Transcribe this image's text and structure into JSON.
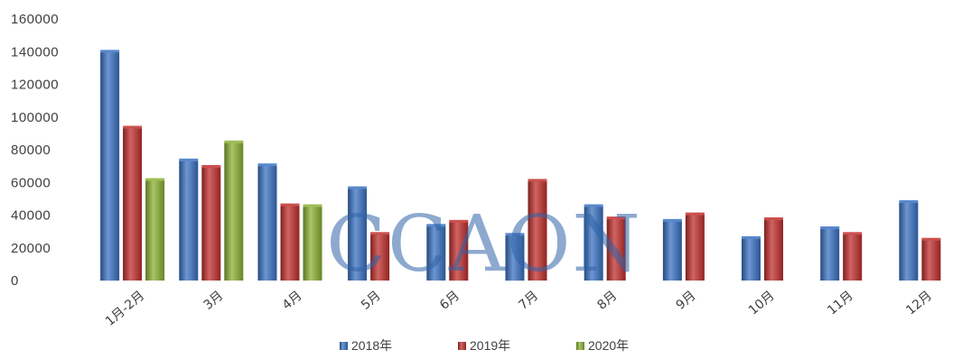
{
  "chart_data": {
    "type": "bar",
    "categories": [
      "1月-2月",
      "3月",
      "4月",
      "5月",
      "6月",
      "7月",
      "8月",
      "9月",
      "10月",
      "11月",
      "12月"
    ],
    "series": [
      {
        "name": "2018年",
        "color": "#3b73c4",
        "values": [
          140000,
          73500,
          70500,
          56500,
          33500,
          28000,
          45500,
          36500,
          26000,
          32000,
          48000
        ]
      },
      {
        "name": "2019年",
        "color": "#c2302d",
        "values": [
          93500,
          69500,
          46000,
          28500,
          36000,
          61000,
          38000,
          40500,
          37500,
          28500,
          25000
        ]
      },
      {
        "name": "2020年",
        "color": "#8cb334",
        "values": [
          61500,
          84500,
          45500,
          null,
          null,
          null,
          null,
          null,
          null,
          null,
          null
        ]
      }
    ],
    "ylim": [
      0,
      160000
    ],
    "yticks": [
      0,
      20000,
      40000,
      60000,
      80000,
      100000,
      120000,
      140000,
      160000
    ],
    "grid": false,
    "legend_position": "bottom",
    "watermark": "CCAON"
  }
}
